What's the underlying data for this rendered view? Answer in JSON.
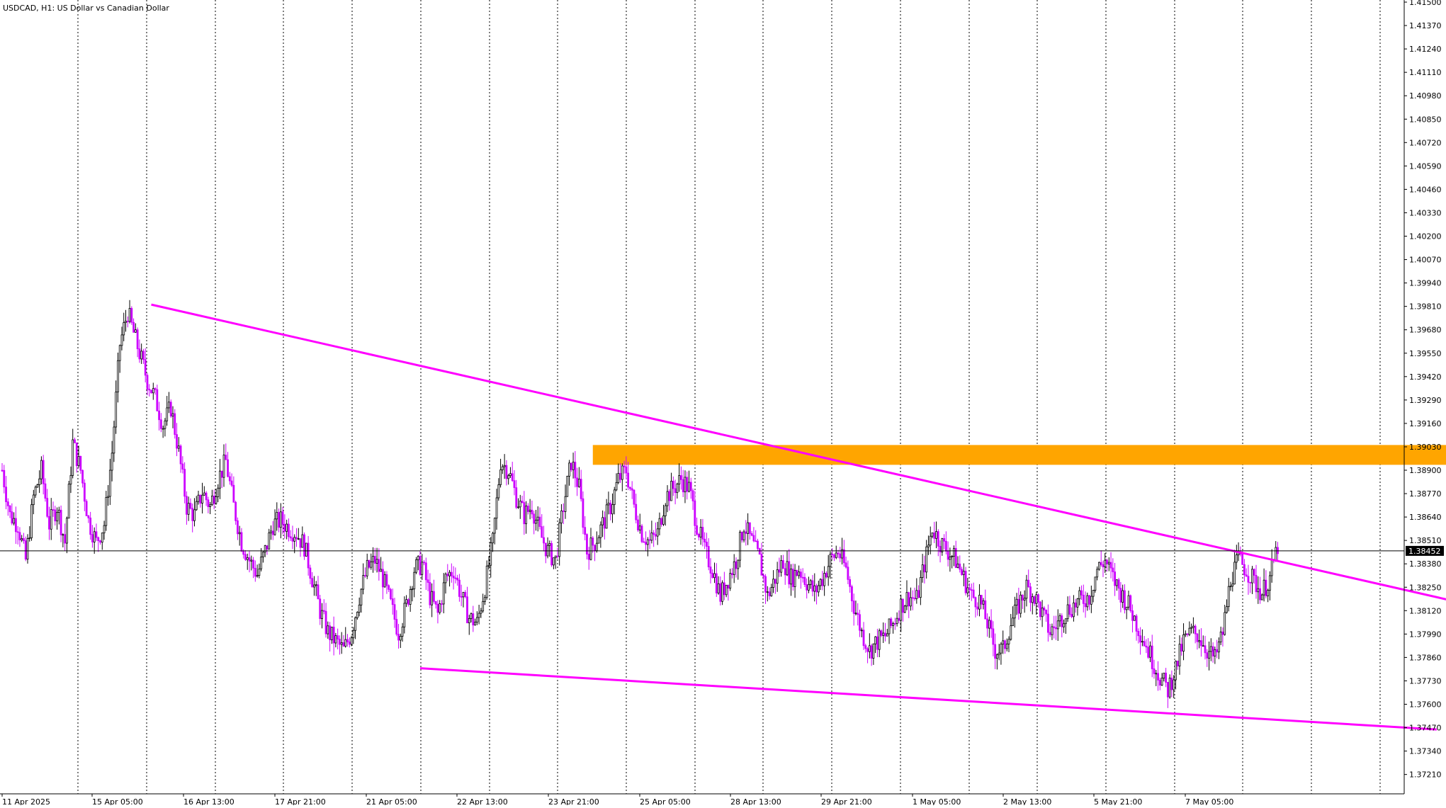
{
  "header": {
    "title": "USDCAD, H1:  US Dollar vs Canadian Dollar"
  },
  "chart_data": {
    "type": "candlestick",
    "symbol": "USDCAD",
    "timeframe": "H1",
    "ylim": [
      1.3705,
      1.4152
    ],
    "y_ticks": [
      "1.41500",
      "1.41370",
      "1.41240",
      "1.41110",
      "1.40980",
      "1.40850",
      "1.40720",
      "1.40590",
      "1.40460",
      "1.40330",
      "1.40200",
      "1.40070",
      "1.39940",
      "1.39810",
      "1.39680",
      "1.39550",
      "1.39420",
      "1.39290",
      "1.39160",
      "1.39030",
      "1.38900",
      "1.38770",
      "1.38640",
      "1.38510",
      "1.38380",
      "1.38250",
      "1.38120",
      "1.37990",
      "1.37860",
      "1.37730",
      "1.37600",
      "1.37470",
      "1.37340",
      "1.37210"
    ],
    "x_ticks": [
      "11 Apr 2025",
      "15 Apr 05:00",
      "16 Apr 13:00",
      "17 Apr 21:00",
      "21 Apr 05:00",
      "22 Apr 13:00",
      "23 Apr 21:00",
      "25 Apr 05:00",
      "28 Apr 13:00",
      "29 Apr 21:00",
      "1 May 05:00",
      "2 May 13:00",
      "5 May 21:00",
      "7 May 05:00"
    ],
    "grid": "vertical dotted",
    "current_price": "1.38452",
    "bull_color": "#000000",
    "bear_color": "#cc00ff",
    "trendline_color": "#ff00ff",
    "zone_color": "#ffa500",
    "price_path": [
      [
        0,
        1.389
      ],
      [
        4,
        1.3865
      ],
      [
        8,
        1.386
      ],
      [
        12,
        1.384
      ],
      [
        16,
        1.3875
      ],
      [
        20,
        1.389
      ],
      [
        24,
        1.386
      ],
      [
        28,
        1.387
      ],
      [
        32,
        1.385
      ],
      [
        36,
        1.3905
      ],
      [
        40,
        1.389
      ],
      [
        44,
        1.3862
      ],
      [
        48,
        1.385
      ],
      [
        52,
        1.386
      ],
      [
        56,
        1.39
      ],
      [
        60,
        1.396
      ],
      [
        64,
        1.3978
      ],
      [
        66,
        1.397
      ],
      [
        70,
        1.3955
      ],
      [
        74,
        1.394
      ],
      [
        78,
        1.393
      ],
      [
        82,
        1.3915
      ],
      [
        86,
        1.3925
      ],
      [
        90,
        1.39
      ],
      [
        94,
        1.387
      ],
      [
        98,
        1.3865
      ],
      [
        102,
        1.3878
      ],
      [
        106,
        1.387
      ],
      [
        110,
        1.3885
      ],
      [
        114,
        1.3895
      ],
      [
        118,
        1.387
      ],
      [
        122,
        1.385
      ],
      [
        126,
        1.384
      ],
      [
        130,
        1.3832
      ],
      [
        134,
        1.3845
      ],
      [
        138,
        1.386
      ],
      [
        142,
        1.3862
      ],
      [
        146,
        1.3858
      ],
      [
        150,
        1.3855
      ],
      [
        154,
        1.3848
      ],
      [
        158,
        1.383
      ],
      [
        162,
        1.3812
      ],
      [
        166,
        1.38
      ],
      [
        170,
        1.3795
      ],
      [
        174,
        1.379
      ],
      [
        178,
        1.38
      ],
      [
        182,
        1.382
      ],
      [
        186,
        1.3835
      ],
      [
        190,
        1.384
      ],
      [
        194,
        1.383
      ],
      [
        198,
        1.3815
      ],
      [
        202,
        1.38
      ],
      [
        206,
        1.3815
      ],
      [
        210,
        1.3835
      ],
      [
        214,
        1.3838
      ],
      [
        218,
        1.382
      ],
      [
        222,
        1.381
      ],
      [
        226,
        1.383
      ],
      [
        230,
        1.3835
      ],
      [
        234,
        1.382
      ],
      [
        238,
        1.3808
      ],
      [
        242,
        1.3805
      ],
      [
        246,
        1.3825
      ],
      [
        250,
        1.385
      ],
      [
        254,
        1.3895
      ],
      [
        258,
        1.389
      ],
      [
        262,
        1.3875
      ],
      [
        266,
        1.3865
      ],
      [
        270,
        1.387
      ],
      [
        274,
        1.3855
      ],
      [
        278,
        1.3845
      ],
      [
        282,
        1.384
      ],
      [
        286,
        1.387
      ],
      [
        290,
        1.3895
      ],
      [
        294,
        1.388
      ],
      [
        298,
        1.3845
      ],
      [
        302,
        1.385
      ],
      [
        306,
        1.386
      ],
      [
        310,
        1.387
      ],
      [
        314,
        1.3885
      ],
      [
        318,
        1.389
      ],
      [
        322,
        1.387
      ],
      [
        326,
        1.3855
      ],
      [
        330,
        1.385
      ],
      [
        334,
        1.3855
      ],
      [
        338,
        1.3875
      ],
      [
        342,
        1.388
      ],
      [
        346,
        1.3885
      ],
      [
        350,
        1.388
      ],
      [
        354,
        1.386
      ],
      [
        358,
        1.3845
      ],
      [
        362,
        1.3835
      ],
      [
        366,
        1.382
      ],
      [
        370,
        1.383
      ],
      [
        374,
        1.384
      ],
      [
        378,
        1.386
      ],
      [
        382,
        1.385
      ],
      [
        386,
        1.384
      ],
      [
        390,
        1.382
      ],
      [
        394,
        1.383
      ],
      [
        398,
        1.384
      ],
      [
        402,
        1.383
      ],
      [
        406,
        1.3835
      ],
      [
        410,
        1.3828
      ],
      [
        414,
        1.3822
      ],
      [
        418,
        1.383
      ],
      [
        422,
        1.384
      ],
      [
        426,
        1.3845
      ],
      [
        430,
        1.3835
      ],
      [
        434,
        1.3815
      ],
      [
        438,
        1.38
      ],
      [
        442,
        1.379
      ],
      [
        446,
        1.3795
      ],
      [
        450,
        1.3798
      ],
      [
        454,
        1.3805
      ],
      [
        458,
        1.3815
      ],
      [
        462,
        1.382
      ],
      [
        466,
        1.3818
      ],
      [
        470,
        1.3838
      ],
      [
        474,
        1.3858
      ],
      [
        478,
        1.385
      ],
      [
        482,
        1.3845
      ],
      [
        486,
        1.384
      ],
      [
        490,
        1.383
      ],
      [
        494,
        1.382
      ],
      [
        498,
        1.3818
      ],
      [
        502,
        1.3805
      ],
      [
        506,
        1.379
      ],
      [
        510,
        1.379
      ],
      [
        514,
        1.3805
      ],
      [
        518,
        1.3815
      ],
      [
        522,
        1.3825
      ],
      [
        526,
        1.382
      ],
      [
        530,
        1.381
      ],
      [
        534,
        1.38
      ],
      [
        538,
        1.3805
      ],
      [
        542,
        1.3812
      ],
      [
        546,
        1.3815
      ],
      [
        550,
        1.3818
      ],
      [
        554,
        1.382
      ],
      [
        558,
        1.3835
      ],
      [
        562,
        1.384
      ],
      [
        566,
        1.383
      ],
      [
        570,
        1.3822
      ],
      [
        574,
        1.3815
      ],
      [
        578,
        1.3805
      ],
      [
        582,
        1.3795
      ],
      [
        586,
        1.3785
      ],
      [
        590,
        1.3775
      ],
      [
        594,
        1.3768
      ],
      [
        598,
        1.378
      ],
      [
        602,
        1.3795
      ],
      [
        606,
        1.38
      ],
      [
        610,
        1.3798
      ],
      [
        614,
        1.379
      ],
      [
        618,
        1.3785
      ],
      [
        622,
        1.38
      ],
      [
        626,
        1.383
      ],
      [
        630,
        1.384
      ],
      [
        634,
        1.3835
      ],
      [
        638,
        1.3828
      ],
      [
        642,
        1.3822
      ],
      [
        646,
        1.383
      ],
      [
        650,
        1.3848
      ]
    ],
    "resistance_trendline": {
      "from": [
        76,
        1.3982
      ],
      "to": [
        745,
        1.3816
      ]
    },
    "support_trendline": {
      "from": [
        213,
        1.378
      ],
      "to": [
        731,
        1.3746
      ]
    },
    "resistance_zone": {
      "x_from": 301,
      "x_to": 770,
      "y_low": 1.3893,
      "y_high": 1.3904
    },
    "candle_count": 707
  }
}
